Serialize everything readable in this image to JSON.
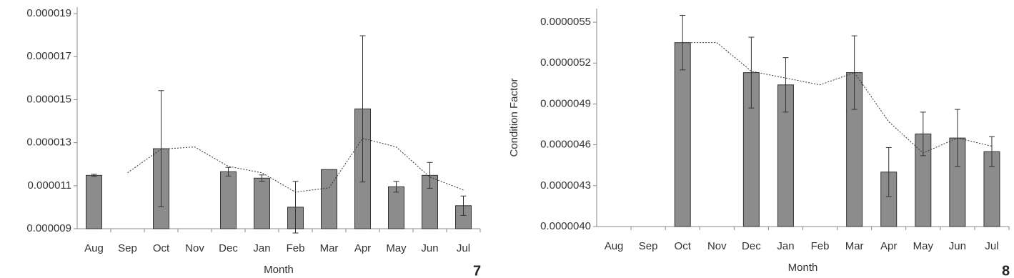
{
  "chart_data": [
    {
      "type": "bar",
      "figure_label": "7",
      "xlabel": "Month",
      "categories": [
        "Aug",
        "Sep",
        "Oct",
        "Nov",
        "Dec",
        "Jan",
        "Feb",
        "Mar",
        "Apr",
        "May",
        "Jun",
        "Jul"
      ],
      "values": [
        1.148e-05,
        null,
        1.272e-05,
        null,
        1.165e-05,
        1.135e-05,
        1e-05,
        1.175e-05,
        1.457e-05,
        1.095e-05,
        1.148e-05,
        1.007e-05
      ],
      "errors": [
        5e-08,
        null,
        2.7e-06,
        null,
        2e-07,
        1.5e-07,
        1.2e-06,
        null,
        3.4e-06,
        2.5e-07,
        6e-07,
        4.5e-07
      ],
      "trend": [
        null,
        1.16e-05,
        1.27e-05,
        1.28e-05,
        1.19e-05,
        1.16e-05,
        1.07e-05,
        1.09e-05,
        1.32e-05,
        1.28e-05,
        1.14e-05,
        1.08e-05
      ],
      "color": "#8c8c8c",
      "ylim": [
        9e-06,
        1.93e-05
      ],
      "yticks": [
        9e-06,
        1.1e-05,
        1.3e-05,
        1.5e-05,
        1.7e-05,
        1.9e-05
      ]
    },
    {
      "type": "bar",
      "figure_label": "8",
      "xlabel": "Month",
      "ylabel": "Condition Factor",
      "categories": [
        "Aug",
        "Sep",
        "Oct",
        "Nov",
        "Dec",
        "Jan",
        "Feb",
        "Mar",
        "Apr",
        "May",
        "Jun",
        "Jul"
      ],
      "values": [
        null,
        null,
        5.35e-06,
        null,
        5.13e-06,
        5.04e-06,
        null,
        5.13e-06,
        4.4e-06,
        4.68e-06,
        4.65e-06,
        4.55e-06
      ],
      "errors": [
        null,
        null,
        2e-07,
        null,
        2.6e-07,
        2e-07,
        null,
        2.7e-07,
        1.8e-07,
        1.6e-07,
        2.1e-07,
        1.1e-07
      ],
      "trend": [
        null,
        null,
        5.35e-06,
        5.35e-06,
        5.14e-06,
        5.09e-06,
        5.04e-06,
        5.13e-06,
        4.77e-06,
        4.54e-06,
        4.65e-06,
        4.59e-06
      ],
      "color": "#8c8c8c",
      "ylim": [
        4e-06,
        5.6e-06
      ],
      "yticks": [
        {
          "value": 4e-06,
          "label": "0.0000040"
        },
        {
          "value": 4.3e-06,
          "label": "0.0000043"
        },
        {
          "value": 4.6e-06,
          "label": "0.0000046"
        },
        {
          "value": 4.9e-06,
          "label": "0.0000049"
        },
        {
          "value": 5.2e-06,
          "label": "0.0000052"
        },
        {
          "value": 5.5e-06,
          "label": "0.0000055"
        }
      ]
    }
  ]
}
